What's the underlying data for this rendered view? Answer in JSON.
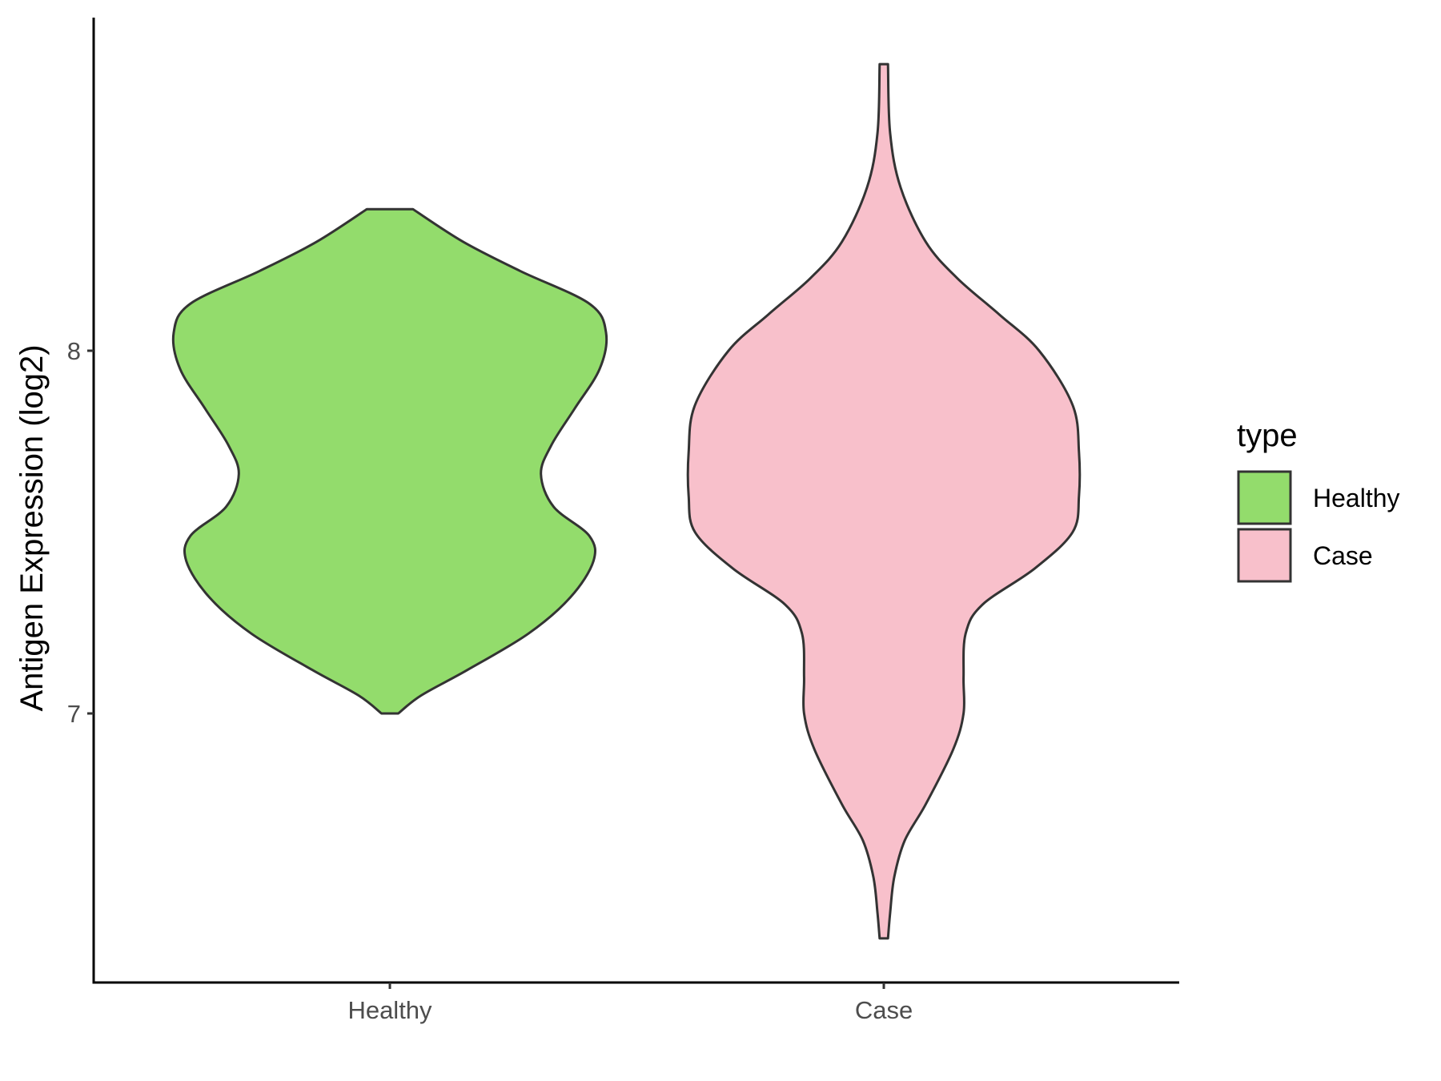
{
  "chart_data": {
    "type": "violin",
    "title": "",
    "xlabel": "",
    "ylabel": "Antigen Expression (log2)",
    "categories": [
      "Healthy",
      "Case"
    ],
    "ylim": [
      6.28,
      8.92
    ],
    "yticks": [
      7,
      8
    ],
    "grid": false,
    "legend": {
      "title": "type",
      "position": "right",
      "entries": [
        {
          "label": "Healthy",
          "color": "#93DC6C"
        },
        {
          "label": "Case",
          "color": "#F8C0CB"
        }
      ]
    },
    "series": [
      {
        "category": "Healthy",
        "color": "#93DC6C",
        "min": 7.0,
        "max": 8.39,
        "density_profile": [
          [
            7.0,
            0.04
          ],
          [
            7.05,
            0.15
          ],
          [
            7.12,
            0.37
          ],
          [
            7.22,
            0.66
          ],
          [
            7.32,
            0.86
          ],
          [
            7.42,
            0.97
          ],
          [
            7.49,
            0.95
          ],
          [
            7.57,
            0.78
          ],
          [
            7.66,
            0.72
          ],
          [
            7.74,
            0.77
          ],
          [
            7.84,
            0.88
          ],
          [
            7.95,
            1.0
          ],
          [
            8.05,
            1.03
          ],
          [
            8.13,
            0.95
          ],
          [
            8.22,
            0.62
          ],
          [
            8.3,
            0.35
          ],
          [
            8.39,
            0.11
          ]
        ]
      },
      {
        "category": "Case",
        "color": "#F8C0CB",
        "min": 6.38,
        "max": 8.79,
        "density_profile": [
          [
            6.38,
            0.02
          ],
          [
            6.45,
            0.03
          ],
          [
            6.55,
            0.05
          ],
          [
            6.65,
            0.1
          ],
          [
            6.75,
            0.2
          ],
          [
            6.9,
            0.33
          ],
          [
            7.0,
            0.38
          ],
          [
            7.1,
            0.38
          ],
          [
            7.22,
            0.39
          ],
          [
            7.3,
            0.47
          ],
          [
            7.4,
            0.72
          ],
          [
            7.5,
            0.9
          ],
          [
            7.6,
            0.93
          ],
          [
            7.72,
            0.93
          ],
          [
            7.85,
            0.9
          ],
          [
            8.0,
            0.74
          ],
          [
            8.1,
            0.55
          ],
          [
            8.2,
            0.35
          ],
          [
            8.3,
            0.2
          ],
          [
            8.45,
            0.08
          ],
          [
            8.6,
            0.03
          ],
          [
            8.79,
            0.02
          ]
        ]
      }
    ]
  }
}
